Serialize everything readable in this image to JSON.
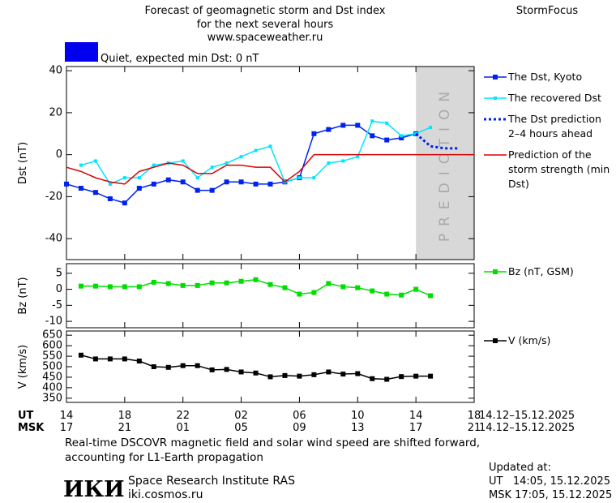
{
  "header": {
    "title": "Forecast of geomagnetic storm and Dst index",
    "subtitle": "for the next several hours",
    "url": "www.spaceweather.ru",
    "brand": "StormFocus",
    "quiet_label": "Quiet, expected min Dst: 0 nT",
    "quiet_color": "#0000ee"
  },
  "x_axis": {
    "xlim": [
      0,
      28
    ],
    "ut_label": "UT",
    "msk_label": "MSK",
    "xticks": [
      {
        "value": 0,
        "label": "14"
      },
      {
        "value": 4,
        "label": "18"
      },
      {
        "value": 8,
        "label": "22"
      },
      {
        "value": 12,
        "label": "02"
      },
      {
        "value": 16,
        "label": "06"
      },
      {
        "value": 20,
        "label": "10"
      },
      {
        "value": 24,
        "label": "14"
      },
      {
        "value": 28,
        "label": "18"
      }
    ],
    "msk_ticks": [
      "17",
      "21",
      "01",
      "05",
      "09",
      "13",
      "17",
      "21"
    ],
    "ut_dates": "14.12–15.12.2025",
    "msk_dates": "14.12–15.12.2025"
  },
  "chart_data": [
    {
      "type": "line",
      "ylabel": "Dst (nT)",
      "ylim": [
        -50,
        42
      ],
      "yticks": [
        40,
        20,
        0,
        -20,
        -40
      ],
      "prediction": {
        "label": "PREDICTION",
        "xlim": [
          24,
          28
        ],
        "color": "#d8d8d8"
      },
      "series": [
        {
          "name": "The Dst, Kyoto",
          "color": "#0022ee",
          "marker": "square",
          "style": "solid",
          "x": [
            0,
            1,
            2,
            3,
            4,
            5,
            6,
            7,
            8,
            9,
            10,
            11,
            12,
            13,
            14,
            15,
            16,
            17,
            18,
            19,
            20,
            21,
            22,
            23,
            24
          ],
          "values": [
            -14,
            -16,
            -18,
            -21,
            -23,
            -16,
            -14,
            -12,
            -13,
            -17,
            -17,
            -13,
            -13,
            -14,
            -14,
            -13,
            -11,
            10,
            12,
            14,
            14,
            9,
            7,
            8,
            10
          ]
        },
        {
          "name": "The recovered Dst",
          "color": "#00e5ff",
          "marker": "small",
          "style": "solid",
          "x": [
            1,
            2,
            3,
            4,
            5,
            6,
            7,
            8,
            9,
            10,
            11,
            12,
            13,
            14,
            15,
            16,
            17,
            18,
            19,
            20,
            21,
            22,
            23,
            24,
            25
          ],
          "values": [
            -5,
            -3,
            -14,
            -11,
            -11,
            -5,
            -4,
            -3,
            -11,
            -6,
            -4,
            -1,
            2,
            4,
            -13,
            -11,
            -11,
            -4,
            -3,
            -1,
            16,
            15,
            9,
            10,
            13
          ]
        },
        {
          "name": "The Dst prediction 2–4 hours ahead",
          "color": "#0022ee",
          "marker": "none",
          "style": "dotted",
          "x": [
            24,
            25,
            26,
            27
          ],
          "values": [
            10,
            4,
            3,
            3
          ]
        },
        {
          "name": "Prediction of the storm strength (min Dst)",
          "color": "#dd0000",
          "marker": "none",
          "style": "solid",
          "x": [
            0,
            1,
            2,
            3,
            4,
            5,
            6,
            7,
            8,
            9,
            10,
            11,
            12,
            13,
            14,
            15,
            16,
            17,
            28
          ],
          "values": [
            -6,
            -8,
            -11,
            -13,
            -14,
            -8,
            -6,
            -4,
            -5,
            -9,
            -9,
            -5,
            -5,
            -6,
            -6,
            -13,
            -8,
            0,
            0
          ]
        }
      ]
    },
    {
      "type": "line",
      "ylabel": "Bz (nT)",
      "ylim": [
        -12,
        8
      ],
      "yticks": [
        5,
        0,
        -5,
        -10
      ],
      "series": [
        {
          "name": "Bz (nT, GSM)",
          "color": "#00dd00",
          "marker": "square",
          "style": "solid",
          "x": [
            1,
            2,
            3,
            4,
            5,
            6,
            7,
            8,
            9,
            10,
            11,
            12,
            13,
            14,
            15,
            16,
            17,
            18,
            19,
            20,
            21,
            22,
            23,
            24,
            25
          ],
          "values": [
            1,
            1,
            0.8,
            0.8,
            0.8,
            2.2,
            1.8,
            1.2,
            1.2,
            2,
            2,
            2.5,
            3,
            1.5,
            0.5,
            -1.5,
            -1,
            1.8,
            0.8,
            0.5,
            -0.5,
            -1.5,
            -1.8,
            0,
            -2
          ]
        }
      ]
    },
    {
      "type": "line",
      "ylabel": "V (km/s)",
      "ylim": [
        330,
        670
      ],
      "yticks": [
        650,
        600,
        550,
        500,
        450,
        400,
        350
      ],
      "series": [
        {
          "name": "V (km/s)",
          "color": "#000000",
          "marker": "square",
          "style": "solid",
          "x": [
            1,
            2,
            3,
            4,
            5,
            6,
            7,
            8,
            9,
            10,
            11,
            12,
            13,
            14,
            15,
            16,
            17,
            18,
            19,
            20,
            21,
            22,
            23,
            24,
            25
          ],
          "values": [
            555,
            537,
            537,
            537,
            527,
            500,
            497,
            505,
            505,
            485,
            487,
            475,
            470,
            452,
            458,
            455,
            462,
            475,
            465,
            467,
            443,
            440,
            453,
            455,
            455
          ]
        }
      ]
    }
  ],
  "footer": {
    "note": "Real-time DSCOVR magnetic field and solar wind speed are shifted forward, accounting for L1-Earth propagation",
    "logo": "ИКИ",
    "institute": "Space Research Institute RAS",
    "site": "iki.cosmos.ru",
    "updated_label": "Updated at:",
    "updated_ut": "UT   14:05, 15.12.2025",
    "updated_msk": "MSK 17:05, 15.12.2025"
  }
}
